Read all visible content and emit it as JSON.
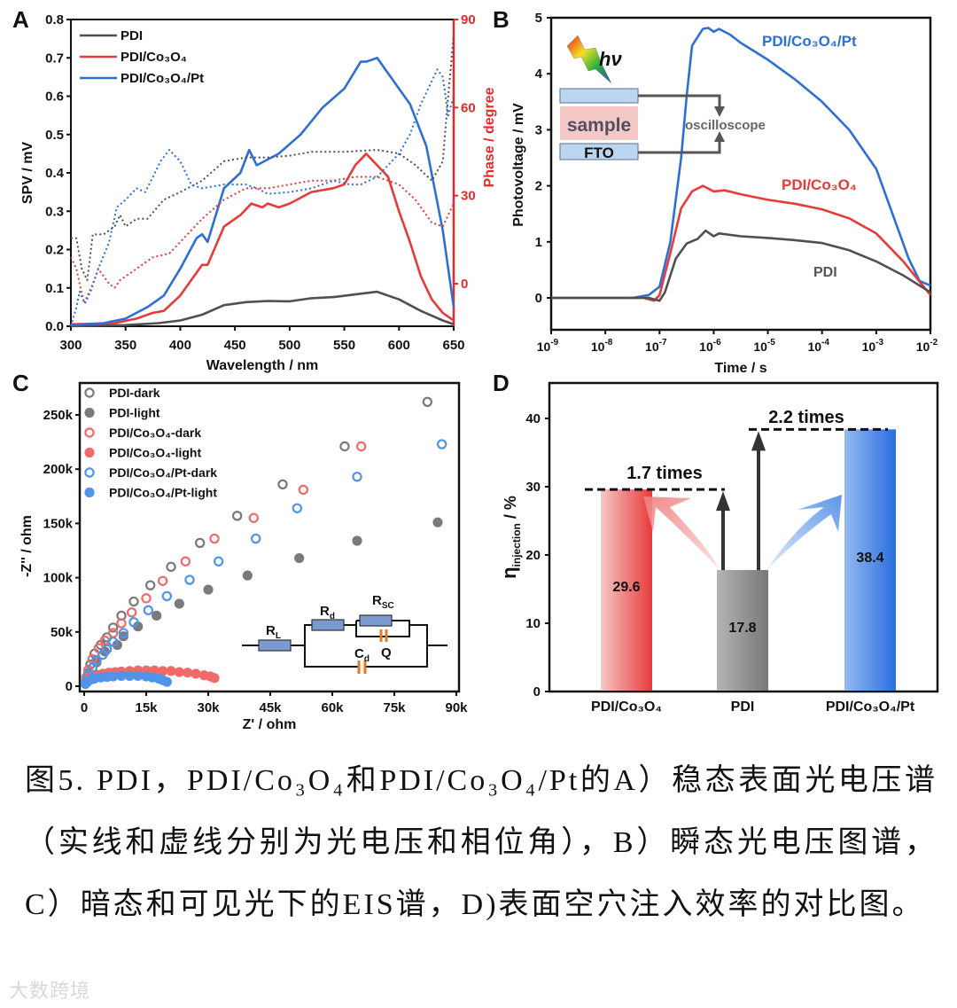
{
  "colors": {
    "pdi": "#505050",
    "co3o4": "#e83a3a",
    "pt": "#2e6fd6",
    "phase_axis": "#e8282a",
    "pdi_marker": "#7a7a7a",
    "co3o4_marker": "#f06a6a",
    "pt_marker": "#4f94e8"
  },
  "panels": {
    "a": "A",
    "b": "B",
    "c": "C",
    "d": "D"
  },
  "chart_data": [
    {
      "id": "A",
      "type": "line",
      "xlabel": "Wavelength / nm",
      "ylabel": "SPV / mV",
      "y2label": "Phase / degree",
      "xlim": [
        300,
        650
      ],
      "ylim": [
        0,
        0.8
      ],
      "y2lim": [
        -14.5,
        90
      ],
      "xticks": [
        300,
        350,
        400,
        450,
        500,
        550,
        600,
        650
      ],
      "yticks": [
        "0.0",
        "0.1",
        "0.2",
        "0.3",
        "0.4",
        "0.5",
        "0.6",
        "0.7",
        "0.8"
      ],
      "y2ticks": [
        0,
        30,
        60,
        90
      ],
      "legend": [
        "PDI",
        "PDI/Co₃O₄",
        "PDI/Co₃O₄/Pt"
      ],
      "legend_position": "top-left",
      "series": [
        {
          "name": "PDI",
          "kind": "SPV (solid)",
          "x": [
            300,
            350,
            380,
            400,
            420,
            440,
            460,
            480,
            500,
            520,
            540,
            560,
            580,
            600,
            620,
            640,
            650
          ],
          "y": [
            0,
            0.003,
            0.008,
            0.015,
            0.03,
            0.055,
            0.063,
            0.066,
            0.065,
            0.073,
            0.076,
            0.083,
            0.09,
            0.07,
            0.04,
            0.015,
            0.005
          ]
        },
        {
          "name": "PDI/Co₃O₄",
          "kind": "SPV (solid)",
          "x": [
            300,
            340,
            360,
            375,
            385,
            400,
            420,
            425,
            440,
            455,
            465,
            475,
            480,
            490,
            500,
            520,
            540,
            550,
            560,
            570,
            580,
            590,
            600,
            610,
            620,
            630,
            640,
            650
          ],
          "y": [
            0.005,
            0.008,
            0.02,
            0.035,
            0.04,
            0.08,
            0.16,
            0.16,
            0.26,
            0.29,
            0.32,
            0.31,
            0.32,
            0.31,
            0.32,
            0.35,
            0.36,
            0.37,
            0.42,
            0.45,
            0.42,
            0.39,
            0.3,
            0.22,
            0.13,
            0.07,
            0.035,
            0.015
          ]
        },
        {
          "name": "PDI/Co₃O₄/Pt",
          "kind": "SPV (solid)",
          "x": [
            300,
            330,
            350,
            370,
            385,
            400,
            415,
            420,
            425,
            440,
            455,
            463,
            470,
            490,
            510,
            530,
            550,
            565,
            570,
            580,
            590,
            610,
            625,
            640,
            650
          ],
          "y": [
            0.003,
            0.008,
            0.02,
            0.05,
            0.08,
            0.15,
            0.23,
            0.24,
            0.22,
            0.36,
            0.4,
            0.46,
            0.42,
            0.45,
            0.5,
            0.57,
            0.62,
            0.69,
            0.69,
            0.7,
            0.66,
            0.58,
            0.47,
            0.25,
            0.05
          ]
        },
        {
          "name": "PDI",
          "kind": "Phase (dotted)",
          "x": [
            300,
            305,
            310,
            315,
            320,
            330,
            340,
            345,
            350,
            360,
            370,
            385,
            400,
            420,
            440,
            460,
            480,
            500,
            520,
            550,
            580,
            600,
            615,
            630,
            640,
            645,
            650
          ],
          "y": [
            15.5,
            15.5,
            5.1,
            1.2,
            16.8,
            16.8,
            19.5,
            23.4,
            19.5,
            22.1,
            22.1,
            28.6,
            31.2,
            35.1,
            41.7,
            43,
            43,
            43.6,
            44.9,
            44.9,
            45.6,
            44.3,
            40.4,
            35.1,
            41.7,
            63.9,
            84.8
          ]
        },
        {
          "name": "PDI/Co₃O₄",
          "kind": "Phase (dotted)",
          "x": [
            300,
            305,
            312,
            320,
            325,
            335,
            340,
            345,
            355,
            365,
            375,
            390,
            400,
            420,
            440,
            460,
            480,
            500,
            520,
            540,
            560,
            580,
            600,
            615,
            630,
            640,
            650
          ],
          "y": [
            9,
            5.1,
            -6.7,
            -0.1,
            5.1,
            -0.1,
            -1.4,
            1.2,
            3.8,
            6.4,
            9,
            10.3,
            14.2,
            22.1,
            28.6,
            32.5,
            32.5,
            33.8,
            35.1,
            35.1,
            36.4,
            36.4,
            33.8,
            28.6,
            20.8,
            19.5,
            27.3
          ]
        },
        {
          "name": "PDI/Co₃O₄/Pt",
          "kind": "Phase (dotted)",
          "x": [
            300,
            305,
            308,
            313,
            318,
            325,
            335,
            342,
            350,
            360,
            368,
            375,
            382,
            390,
            400,
            410,
            420,
            440,
            460,
            470,
            480,
            500,
            520,
            540,
            555,
            565,
            580,
            600,
            610,
            620,
            635,
            640,
            645,
            650
          ],
          "y": [
            -14.5,
            -8,
            -2.7,
            -6.7,
            -2.7,
            5.1,
            14.2,
            26,
            28.6,
            32.5,
            31.2,
            36.4,
            41.7,
            45.6,
            41.7,
            33.8,
            32.5,
            33.8,
            33.8,
            32.5,
            30.6,
            31.2,
            32.5,
            35.1,
            33.8,
            33.8,
            36.4,
            44.3,
            50.8,
            61.2,
            73,
            70.4,
            57.3,
            63.9
          ]
        }
      ]
    },
    {
      "id": "B",
      "type": "line",
      "xlabel": "Time / s",
      "ylabel": "Photovoltage / mV",
      "xscale": "log",
      "xlim_log10": [
        -9,
        -2
      ],
      "ylim": [
        -0.57,
        5
      ],
      "xtick_base": "10",
      "xtick_exponents": [
        "-9",
        "-8",
        "-7",
        "-6",
        "-5",
        "-4",
        "-3",
        "-2"
      ],
      "yticks": [
        0,
        1,
        2,
        3,
        4,
        5
      ],
      "annotations": {
        "pt": "PDI/Co₃O₄/Pt",
        "co3o4": "PDI/Co₃O₄",
        "pdi": "PDI"
      },
      "inset": {
        "hv": "hν",
        "sample": "sample",
        "fto": "FTO",
        "oscilloscope": "oscilloscope"
      },
      "series": [
        {
          "name": "PDI/Co₃O₄/Pt",
          "log10_t": [
            -9,
            -7.5,
            -7.2,
            -7,
            -6.8,
            -6.6,
            -6.5,
            -6.4,
            -6.2,
            -6.1,
            -6,
            -5.9,
            -5.7,
            -5.5,
            -5,
            -4.5,
            -4,
            -3.5,
            -3,
            -2.7,
            -2.4,
            -2.2,
            -2
          ],
          "y": [
            0,
            0,
            0.05,
            0.2,
            1,
            2.5,
            3.6,
            4.5,
            4.8,
            4.82,
            4.75,
            4.8,
            4.7,
            4.55,
            4.25,
            3.9,
            3.5,
            3,
            2.3,
            1.5,
            0.7,
            0.3,
            0.22
          ]
        },
        {
          "name": "PDI/Co₃O₄",
          "log10_t": [
            -9,
            -7.3,
            -7.1,
            -7,
            -6.8,
            -6.6,
            -6.4,
            -6.2,
            -6,
            -5.8,
            -5.5,
            -5,
            -4.5,
            -4,
            -3.5,
            -3,
            -2.5,
            -2
          ],
          "y": [
            0,
            0,
            -0.05,
            0.05,
            0.8,
            1.6,
            1.9,
            2,
            1.9,
            1.92,
            1.85,
            1.75,
            1.68,
            1.58,
            1.42,
            1.15,
            0.65,
            0.05
          ]
        },
        {
          "name": "PDI",
          "log10_t": [
            -9,
            -7.2,
            -7,
            -6.9,
            -6.7,
            -6.5,
            -6.3,
            -6.15,
            -6,
            -5.9,
            -5.5,
            -5,
            -4.5,
            -4,
            -3.5,
            -3,
            -2.5,
            -2
          ],
          "y": [
            0,
            0,
            -0.05,
            0.1,
            0.7,
            0.97,
            1.05,
            1.2,
            1.1,
            1.15,
            1.1,
            1.07,
            1.03,
            0.98,
            0.85,
            0.65,
            0.4,
            0.1
          ]
        }
      ]
    },
    {
      "id": "C",
      "type": "scatter",
      "xlabel": "Z' / ohm",
      "ylabel": "-Z'' / ohm",
      "xlim_k": [
        0,
        90
      ],
      "ylim_k": [
        0,
        250
      ],
      "xticks": [
        "0",
        "15k",
        "30k",
        "45k",
        "60k",
        "75k",
        "90k"
      ],
      "yticks": [
        "0",
        "50k",
        "100k",
        "150k",
        "200k",
        "250k"
      ],
      "legend_position": "top-left",
      "circuit": {
        "rl": "R",
        "rl_sub": "L",
        "rd": "R",
        "rd_sub": "d",
        "rsc": "R",
        "rsc_sub": "SC",
        "cd": "C",
        "cd_sub": "d",
        "q": "Q"
      },
      "series": [
        {
          "name": "PDI-dark",
          "marker": "open",
          "color": "pdi_marker",
          "x_k": [
            0.5,
            1,
            1.5,
            2.5,
            4,
            5.5,
            7,
            9,
            12,
            16,
            21,
            28,
            37,
            48,
            63,
            83
          ],
          "y_k": [
            5,
            12,
            20,
            30,
            38,
            45,
            54,
            65,
            78,
            93,
            110,
            132,
            157,
            186,
            221,
            262
          ]
        },
        {
          "name": "PDI-light",
          "marker": "filled",
          "color": "pdi_marker",
          "x_k": [
            0.5,
            1.5,
            3,
            5,
            8,
            9.5,
            13,
            17.5,
            23,
            30,
            39.5,
            52,
            66,
            85.5
          ],
          "y_k": [
            3,
            10,
            22,
            32,
            38,
            46,
            55,
            65,
            76,
            89,
            102,
            118,
            134,
            151
          ]
        },
        {
          "name": "PDI/Co₃O₄-dark",
          "marker": "open",
          "color": "co3o4_marker",
          "x_k": [
            0.5,
            1,
            2,
            3.5,
            5,
            7,
            9,
            11.5,
            15,
            19,
            24.5,
            31.5,
            41,
            53,
            67
          ],
          "y_k": [
            8,
            15,
            25,
            35,
            42,
            49,
            58,
            68,
            81,
            97,
            115,
            136,
            155,
            181,
            221
          ]
        },
        {
          "name": "PDI/Co₃O₄-light",
          "marker": "filled",
          "color": "co3o4_marker",
          "x_k": [
            0.5,
            1,
            2,
            3,
            4.5,
            6,
            7.5,
            9,
            11,
            13,
            15,
            17,
            19,
            21,
            23,
            25,
            27,
            29,
            30.5,
            31.5
          ],
          "y_k": [
            4,
            7,
            9,
            10.5,
            11.5,
            12.5,
            13,
            13.5,
            14,
            14.5,
            14.5,
            14.5,
            14,
            14,
            13,
            12.5,
            11.5,
            10,
            9,
            7.5
          ]
        },
        {
          "name": "PDI/Co₃O₄/Pt-dark",
          "marker": "open",
          "color": "pt_marker",
          "x_k": [
            0.5,
            1,
            2,
            3,
            4.5,
            5.5,
            7,
            9.5,
            12,
            15.5,
            20,
            25.5,
            32.5,
            41.5,
            51.5,
            66,
            86.5
          ],
          "y_k": [
            4,
            10,
            17,
            24,
            29,
            34,
            41,
            49,
            59,
            70,
            83,
            98,
            115,
            136,
            164,
            193,
            223
          ]
        },
        {
          "name": "PDI/Co₃O₄/Pt-light",
          "marker": "filled",
          "color": "pt_marker",
          "x_k": [
            0.3,
            0.8,
            1.5,
            2.5,
            4,
            5.5,
            7,
            9,
            11,
            13,
            15,
            16.5,
            18,
            19,
            20
          ],
          "y_k": [
            2,
            4,
            6,
            7,
            8,
            8.5,
            9,
            9.5,
            9.5,
            9.5,
            9,
            8,
            7,
            5.5,
            4
          ]
        }
      ]
    },
    {
      "id": "D",
      "type": "bar",
      "ylabel": "η",
      "ylabel_sub": "injection",
      "ylabel_unit": " / %",
      "ylim": [
        0,
        45
      ],
      "yticks": [
        0,
        10,
        20,
        30,
        40
      ],
      "categories": [
        "PDI/Co₃O₄",
        "PDI",
        "PDI/Co₃O₄/Pt"
      ],
      "values": [
        29.6,
        17.8,
        38.4
      ],
      "value_labels": [
        "29.6",
        "17.8",
        "38.4"
      ],
      "annotations": {
        "ratio_co3o4": "1.7 times",
        "ratio_pt": "2.2 times"
      }
    }
  ],
  "caption": "图5. PDI，PDI/Co₃O₄和PDI/Co₃O₄/Pt的A）稳态表面光电压谱（实线和虚线分别为光电压和相位角），B）瞬态光电压图谱，C）暗态和可见光下的EIS谱，D)表面空穴注入效率的对比图。",
  "watermark": "大数跨境"
}
